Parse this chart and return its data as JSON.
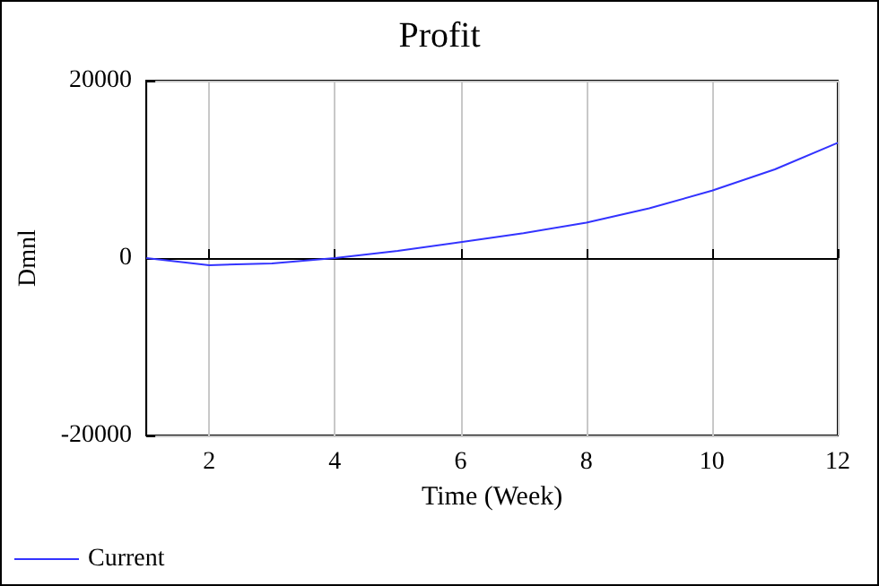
{
  "chart_data": {
    "type": "line",
    "title": "Profit",
    "xlabel": "Time (Week)",
    "ylabel": "Dmnl",
    "x": [
      1,
      2,
      3,
      4,
      5,
      6,
      7,
      8,
      9,
      10,
      11,
      12
    ],
    "series": [
      {
        "name": "Current",
        "color": "#3333ff",
        "values": [
          0,
          -800,
          -600,
          0,
          800,
          1800,
          2800,
          4000,
          5600,
          7600,
          10000,
          13000
        ]
      }
    ],
    "xlim": [
      1,
      12
    ],
    "xticks": [
      2,
      4,
      6,
      8,
      10,
      12
    ],
    "ylim": [
      -20000,
      20000
    ],
    "yticks": [
      -20000,
      0,
      20000
    ],
    "grid": true,
    "legend": "bottom left",
    "marker": "none",
    "line_style": "solid"
  }
}
